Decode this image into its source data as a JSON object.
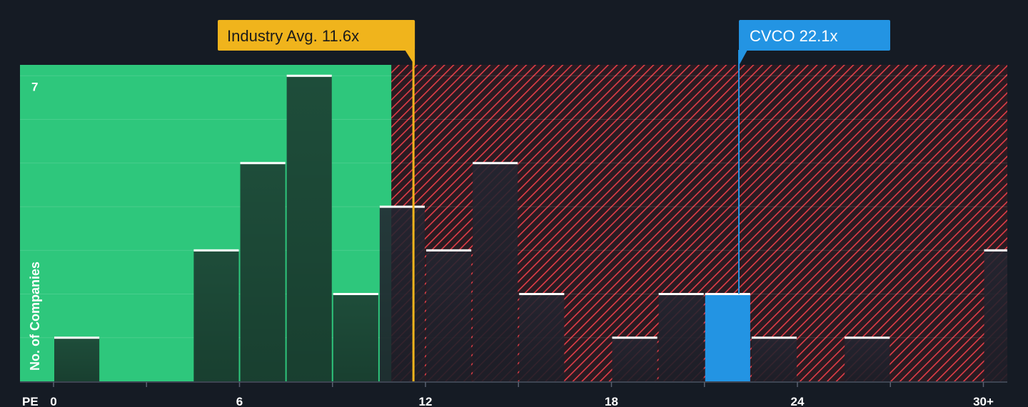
{
  "chart_data": {
    "type": "bar",
    "title": "",
    "xlabel": "PE",
    "ylabel": "No. of Companies",
    "x_tick_labels": [
      "0",
      "6",
      "12",
      "18",
      "24",
      "30+"
    ],
    "x_tick_values": [
      0,
      6,
      12,
      18,
      24,
      30
    ],
    "xlim": [
      -1,
      30.8
    ],
    "ylim": [
      0,
      7.25
    ],
    "y_tick_label": "7",
    "grid": true,
    "bin_width": 1.5,
    "bins": [
      {
        "x": 0.75,
        "value": 1,
        "highlight": false
      },
      {
        "x": 5.25,
        "value": 3,
        "highlight": false
      },
      {
        "x": 6.75,
        "value": 5,
        "highlight": false
      },
      {
        "x": 8.25,
        "value": 7,
        "highlight": false
      },
      {
        "x": 9.75,
        "value": 2,
        "highlight": false
      },
      {
        "x": 11.25,
        "value": 4,
        "highlight": false
      },
      {
        "x": 12.75,
        "value": 3,
        "highlight": false
      },
      {
        "x": 14.25,
        "value": 5,
        "highlight": false
      },
      {
        "x": 15.75,
        "value": 2,
        "highlight": false
      },
      {
        "x": 18.75,
        "value": 1,
        "highlight": false
      },
      {
        "x": 20.25,
        "value": 2,
        "highlight": false
      },
      {
        "x": 21.75,
        "value": 2,
        "highlight": true
      },
      {
        "x": 23.25,
        "value": 1,
        "highlight": false
      },
      {
        "x": 26.25,
        "value": 1,
        "highlight": false
      },
      {
        "x": 30.75,
        "value": 3,
        "highlight": false
      }
    ],
    "fair_region_end": 10.9,
    "industry_avg": {
      "value": 11.6,
      "label": "Industry Avg. 11.6x",
      "color": "#f0b41c"
    },
    "company": {
      "value": 22.1,
      "label": "CVCO 22.1x",
      "color": "#2394e3"
    },
    "colors": {
      "background": "#151b24",
      "fair_region": "#2ec77c",
      "bar_in_fair": "#1e4d3a",
      "bar_overvalued": "#232531",
      "hatch": "#e23d47",
      "bar_cap": "#ffffff",
      "highlight_bar": "#2394e3",
      "axis_text": "#ffffff"
    }
  }
}
